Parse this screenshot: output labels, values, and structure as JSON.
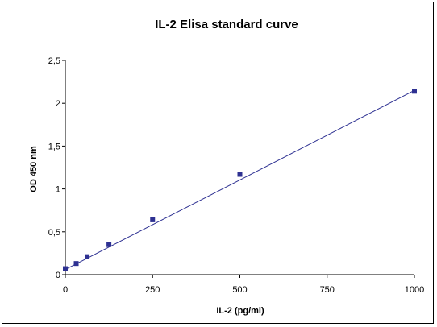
{
  "chart_data": {
    "type": "scatter",
    "title": "IL-2 Elisa standard curve",
    "xlabel": "IL-2 (pg/ml)",
    "ylabel": "OD 450 nm",
    "xlim": [
      0,
      1000
    ],
    "ylim": [
      0,
      2.5
    ],
    "x_ticks": [
      "0",
      "250",
      "500",
      "750",
      "1000"
    ],
    "y_ticks": [
      "0",
      "0,5",
      "1",
      "1,5",
      "2",
      "2,5"
    ],
    "grid": false,
    "legend": "none",
    "series": [
      {
        "x": [
          0,
          31.25,
          62.5,
          125,
          250,
          500,
          1000
        ],
        "y": [
          0.07,
          0.13,
          0.21,
          0.35,
          0.64,
          1.17,
          2.14
        ]
      }
    ],
    "trendline": {
      "type": "linear",
      "x": [
        0,
        1000
      ],
      "y": [
        0.06,
        2.15
      ]
    },
    "colors": {
      "marker": "#2e3192",
      "line": "#2e3192",
      "axis": "#000000"
    }
  }
}
